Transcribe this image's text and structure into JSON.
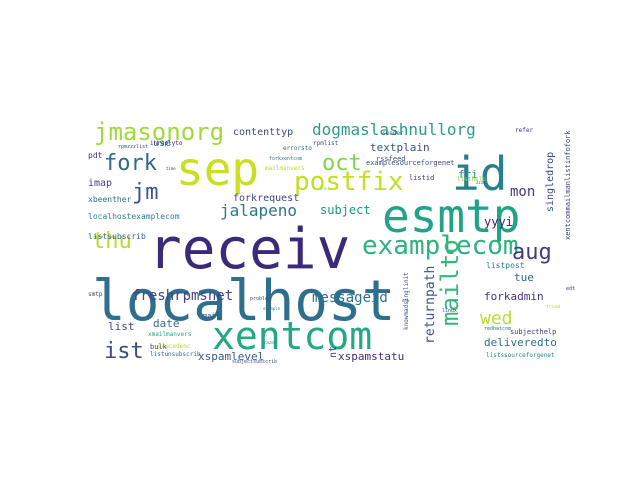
{
  "word_cloud": {
    "words": [
      {
        "text": "receiv",
        "color": "#3b2a7a"
      },
      {
        "text": "localhost",
        "color": "#2e6f8e"
      },
      {
        "text": "esmtp",
        "color": "#20a386"
      },
      {
        "text": "sep",
        "color": "#c8e020"
      },
      {
        "text": "id",
        "color": "#26818e"
      },
      {
        "text": "xentcom",
        "color": "#22a884"
      },
      {
        "text": "examplecom",
        "color": "#2db27d"
      },
      {
        "text": "postfix",
        "color": "#c2df23"
      },
      {
        "text": "jmasonorg",
        "color": "#a0da39"
      },
      {
        "text": "dogmaslashnullorg",
        "color": "#2a9c89"
      },
      {
        "text": "mailto",
        "color": "#35b779"
      },
      {
        "text": "thu",
        "color": "#b5de2b"
      },
      {
        "text": "oct",
        "color": "#7fd34e"
      },
      {
        "text": "fork",
        "color": "#31688e"
      },
      {
        "text": "jm",
        "color": "#39568c"
      },
      {
        "text": "ist",
        "color": "#3e4989"
      },
      {
        "text": "aug",
        "color": "#443983"
      },
      {
        "text": "wed",
        "color": "#b8de29"
      },
      {
        "text": "jalapeno",
        "color": "#2a788e"
      },
      {
        "text": "freshrpmsnet",
        "color": "#414487"
      },
      {
        "text": "messageid",
        "color": "#2c728e"
      },
      {
        "text": "returnpath",
        "color": "#3a548c"
      },
      {
        "text": "mon",
        "color": "#443a83"
      },
      {
        "text": "subject",
        "color": "#21918c"
      },
      {
        "text": "forkadmin",
        "color": "#46327e"
      },
      {
        "text": "deliveredto",
        "color": "#2c738e"
      },
      {
        "text": "date",
        "color": "#2f6c8e"
      },
      {
        "text": "list",
        "color": "#3f4788"
      },
      {
        "text": "xspamlevel",
        "color": "#38598c"
      },
      {
        "text": "xspamstatu",
        "color": "#472a7a"
      },
      {
        "text": "yyyi",
        "color": "#482173"
      },
      {
        "text": "tue",
        "color": "#31688e"
      },
      {
        "text": "fri",
        "color": "#20928c"
      },
      {
        "text": "textplain",
        "color": "#3a538b"
      },
      {
        "text": "contenttyp",
        "color": "#3f4889"
      },
      {
        "text": "use",
        "color": "#2a788e"
      },
      {
        "text": "imap",
        "color": "#424086"
      },
      {
        "text": "forkrequest",
        "color": "#404588"
      },
      {
        "text": "singledrop",
        "color": "#3f4889"
      },
      {
        "text": "localhostexamplecom",
        "color": "#26828e"
      },
      {
        "text": "listsubscrib",
        "color": "#33638d"
      },
      {
        "text": "nt",
        "color": "#453882"
      },
      {
        "text": "listpost",
        "color": "#26828e"
      },
      {
        "text": "pdt",
        "color": "#472d7b"
      },
      {
        "text": "xbeenther",
        "color": "#2d708e"
      },
      {
        "text": "examplesourceforgenet",
        "color": "#3e4a89"
      },
      {
        "text": "listid",
        "color": "#46307e"
      },
      {
        "text": "rssfeed",
        "color": "#3d4d8a"
      },
      {
        "text": "sender",
        "color": "#365c8d"
      },
      {
        "text": "subjecthelp",
        "color": "#46337f"
      },
      {
        "text": "mail",
        "color": "#3b528b"
      },
      {
        "text": "bulk",
        "color": "#443983"
      },
      {
        "text": "listunsubscrib",
        "color": "#32658e"
      },
      {
        "text": "errorsto",
        "color": "#31678e"
      },
      {
        "text": "precedenc",
        "color": "#b5de2b"
      },
      {
        "text": "mailmanvers",
        "color": "#bddf26"
      },
      {
        "text": "inreplyto",
        "color": "#482576"
      },
      {
        "text": "rpmlist",
        "color": "#3e4c8a"
      },
      {
        "text": "refer",
        "color": "#46307e"
      },
      {
        "text": "redhatcom",
        "color": "#2c728e"
      },
      {
        "text": "listhelp",
        "color": "#95d840"
      },
      {
        "text": "forkxentcom",
        "color": "#2a768e"
      },
      {
        "text": "xentcommailmanlistinfofork",
        "color": "#404688"
      },
      {
        "text": "knowmadsinglinit",
        "color": "#3b518b"
      },
      {
        "text": "listssourceforgenet",
        "color": "#23898e"
      },
      {
        "text": "xmailmanvers",
        "color": "#22a785"
      },
      {
        "text": "smtp",
        "color": "#3e4989"
      },
      {
        "text": "subjectsubscrib",
        "color": "#3b518b"
      },
      {
        "text": "problem",
        "color": "#3c4f8a"
      },
      {
        "text": "rpmzzzlist",
        "color": "#3e4a89"
      },
      {
        "text": "example",
        "color": "#2b748e"
      },
      {
        "text": "linux",
        "color": "#3a548c"
      },
      {
        "text": "edt",
        "color": "#443983"
      },
      {
        "text": "new",
        "color": "#31688e"
      },
      {
        "text": "friend",
        "color": "#a8db34"
      },
      {
        "text": "zzzz",
        "color": "#3e4c8a"
      },
      {
        "text": "time",
        "color": "#3b528b"
      },
      {
        "text": "one",
        "color": "#8ed645"
      },
      {
        "text": "razor",
        "color": "#2a788e"
      }
    ]
  }
}
